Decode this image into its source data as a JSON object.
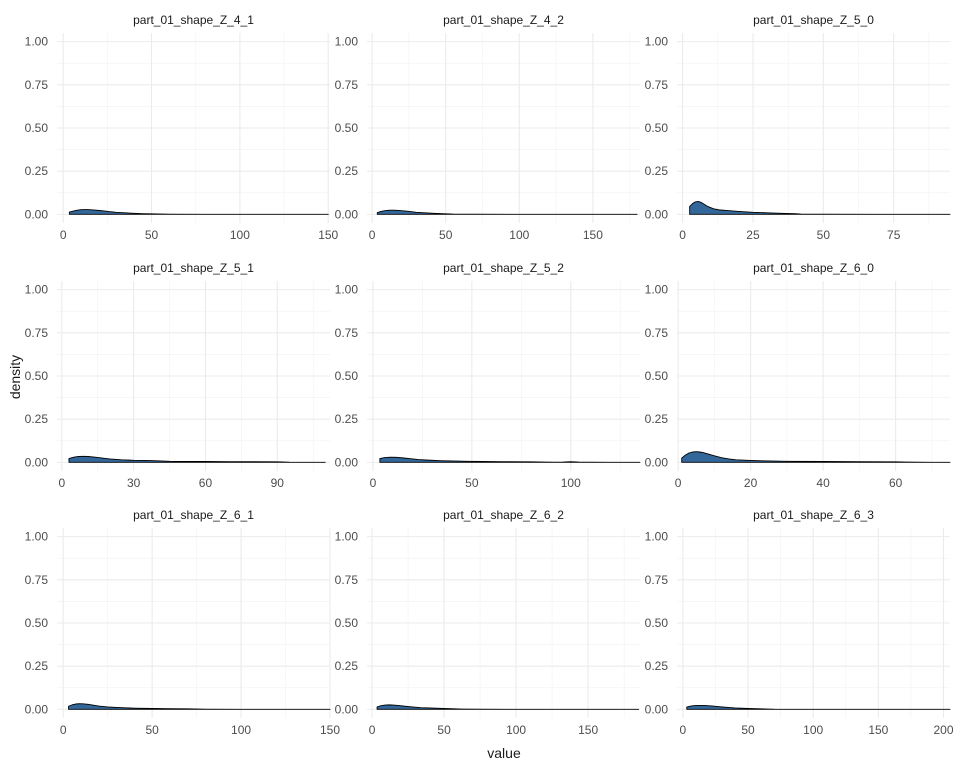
{
  "chart_data": {
    "type": "area",
    "kind": "faceted density",
    "xlabel": "value",
    "ylabel": "density",
    "fill_color": "#336699",
    "outline_color": "#000000",
    "grid": true,
    "legend": "none",
    "panels": [
      {
        "title": "part_01_shape_Z_4_1",
        "xlim": [
          -3.5,
          151
        ],
        "ylim": [
          -0.05,
          1.05
        ],
        "xticks": [
          0,
          50,
          100,
          150
        ],
        "yticks": [
          "0.00",
          "0.25",
          "0.50",
          "0.75",
          "1.00"
        ],
        "x": [
          3.5,
          6,
          8,
          10,
          12,
          14,
          18,
          22,
          26,
          30,
          35,
          40,
          45,
          50,
          60,
          80,
          100,
          120,
          150
        ],
        "y": [
          0.013,
          0.02,
          0.024,
          0.027,
          0.028,
          0.028,
          0.025,
          0.021,
          0.016,
          0.012,
          0.009,
          0.006,
          0.004,
          0.003,
          0.0008,
          0.0004,
          0.0003,
          0.0002,
          0.0002
        ]
      },
      {
        "title": "part_01_shape_Z_4_2",
        "xlim": [
          -3.5,
          182
        ],
        "ylim": [
          -0.05,
          1.05
        ],
        "xticks": [
          0,
          50,
          100,
          150
        ],
        "yticks": [
          "0.00",
          "0.25",
          "0.50",
          "0.75",
          "1.00"
        ],
        "x": [
          3.5,
          6,
          9,
          12,
          15,
          18,
          22,
          26,
          30,
          36,
          42,
          48,
          55,
          70,
          100,
          140,
          180
        ],
        "y": [
          0.01,
          0.017,
          0.022,
          0.024,
          0.024,
          0.023,
          0.02,
          0.016,
          0.012,
          0.009,
          0.006,
          0.004,
          0.002,
          0.0007,
          0.0004,
          0.0003,
          0.0002
        ]
      },
      {
        "title": "part_01_shape_Z_5_0",
        "xlim": [
          -2,
          95
        ],
        "ylim": [
          -0.05,
          1.05
        ],
        "xticks": [
          0,
          25,
          50,
          75
        ],
        "yticks": [
          "0.00",
          "0.25",
          "0.50",
          "0.75",
          "1.00"
        ],
        "x": [
          2.5,
          3.5,
          4.5,
          5.5,
          6.5,
          7.5,
          9,
          11,
          13,
          16,
          20,
          25,
          30,
          35,
          40,
          42,
          50,
          70,
          95
        ],
        "y": [
          0.045,
          0.062,
          0.072,
          0.075,
          0.07,
          0.06,
          0.045,
          0.032,
          0.026,
          0.022,
          0.017,
          0.012,
          0.009,
          0.006,
          0.004,
          0.002,
          0.0008,
          0.0005,
          0.0003
        ]
      },
      {
        "title": "part_01_shape_Z_5_1",
        "xlim": [
          -2,
          112
        ],
        "ylim": [
          -0.05,
          1.05
        ],
        "xticks": [
          0,
          30,
          60,
          90
        ],
        "yticks": [
          "0.00",
          "0.25",
          "0.50",
          "0.75",
          "1.00"
        ],
        "x": [
          3,
          5,
          7,
          9,
          11,
          14,
          17,
          20,
          25,
          30,
          35,
          40,
          45,
          50,
          60,
          70,
          80,
          90,
          95,
          110
        ],
        "y": [
          0.022,
          0.03,
          0.034,
          0.035,
          0.034,
          0.03,
          0.025,
          0.02,
          0.015,
          0.012,
          0.011,
          0.009,
          0.006,
          0.005,
          0.005,
          0.004,
          0.004,
          0.003,
          0.001,
          0.0003
        ]
      },
      {
        "title": "part_01_shape_Z_5_2",
        "xlim": [
          -3,
          135
        ],
        "ylim": [
          -0.05,
          1.05
        ],
        "xticks": [
          0,
          50,
          100
        ],
        "yticks": [
          "0.00",
          "0.25",
          "0.50",
          "0.75",
          "1.00"
        ],
        "x": [
          3.5,
          6,
          9,
          12,
          15,
          19,
          23,
          28,
          34,
          40,
          48,
          55,
          65,
          80,
          87,
          92,
          96,
          100,
          104,
          110,
          120,
          135
        ],
        "y": [
          0.022,
          0.028,
          0.03,
          0.029,
          0.026,
          0.021,
          0.016,
          0.013,
          0.01,
          0.008,
          0.006,
          0.005,
          0.004,
          0.003,
          0.002,
          0.001,
          0.002,
          0.004,
          0.002,
          0.0006,
          0.0003,
          0.0002
        ]
      },
      {
        "title": "part_01_shape_Z_6_0",
        "xlim": [
          -0.3,
          75
        ],
        "ylim": [
          -0.05,
          1.05
        ],
        "xticks": [
          0,
          20,
          40,
          60
        ],
        "yticks": [
          "0.00",
          "0.25",
          "0.50",
          "0.75",
          "1.00"
        ],
        "x": [
          1,
          2,
          3,
          4,
          5,
          6,
          7,
          8,
          10,
          12,
          14,
          16,
          20,
          25,
          30,
          40,
          50,
          60,
          63,
          70,
          75
        ],
        "y": [
          0.025,
          0.042,
          0.054,
          0.06,
          0.062,
          0.06,
          0.056,
          0.05,
          0.038,
          0.027,
          0.02,
          0.015,
          0.011,
          0.008,
          0.006,
          0.005,
          0.004,
          0.003,
          0.002,
          0.0005,
          0.0003
        ]
      },
      {
        "title": "part_01_shape_Z_6_1",
        "xlim": [
          -3.5,
          150
        ],
        "ylim": [
          -0.05,
          1.05
        ],
        "xticks": [
          0,
          50,
          100,
          150
        ],
        "yticks": [
          "0.00",
          "0.25",
          "0.50",
          "0.75",
          "1.00"
        ],
        "x": [
          3,
          5,
          7,
          9,
          11,
          14,
          17,
          20,
          25,
          30,
          35,
          40,
          50,
          60,
          70,
          80,
          100,
          150
        ],
        "y": [
          0.018,
          0.026,
          0.031,
          0.033,
          0.032,
          0.029,
          0.024,
          0.019,
          0.014,
          0.011,
          0.009,
          0.007,
          0.005,
          0.004,
          0.003,
          0.0008,
          0.0004,
          0.0003
        ]
      },
      {
        "title": "part_01_shape_Z_6_2",
        "xlim": [
          -3.5,
          186
        ],
        "ylim": [
          -0.05,
          1.05
        ],
        "xticks": [
          0,
          50,
          100,
          150
        ],
        "yticks": [
          "0.00",
          "0.25",
          "0.50",
          "0.75",
          "1.00"
        ],
        "x": [
          3.5,
          6,
          9,
          12,
          15,
          19,
          23,
          28,
          34,
          40,
          47,
          55,
          62,
          75,
          100,
          140,
          185
        ],
        "y": [
          0.014,
          0.021,
          0.025,
          0.026,
          0.025,
          0.022,
          0.018,
          0.014,
          0.01,
          0.008,
          0.006,
          0.004,
          0.002,
          0.0006,
          0.0004,
          0.0003,
          0.0002
        ]
      },
      {
        "title": "part_01_shape_Z_6_3",
        "xlim": [
          -4.5,
          205
        ],
        "ylim": [
          -0.05,
          1.05
        ],
        "xticks": [
          0,
          50,
          100,
          150,
          200
        ],
        "yticks": [
          "0.00",
          "0.25",
          "0.50",
          "0.75",
          "1.00"
        ],
        "x": [
          3,
          6,
          9,
          12,
          15,
          18,
          22,
          26,
          30,
          35,
          40,
          50,
          60,
          65,
          70,
          100,
          150,
          205
        ],
        "y": [
          0.013,
          0.019,
          0.022,
          0.023,
          0.023,
          0.022,
          0.02,
          0.017,
          0.014,
          0.011,
          0.008,
          0.005,
          0.003,
          0.002,
          0.0008,
          0.0004,
          0.0003,
          0.0002
        ]
      }
    ]
  }
}
